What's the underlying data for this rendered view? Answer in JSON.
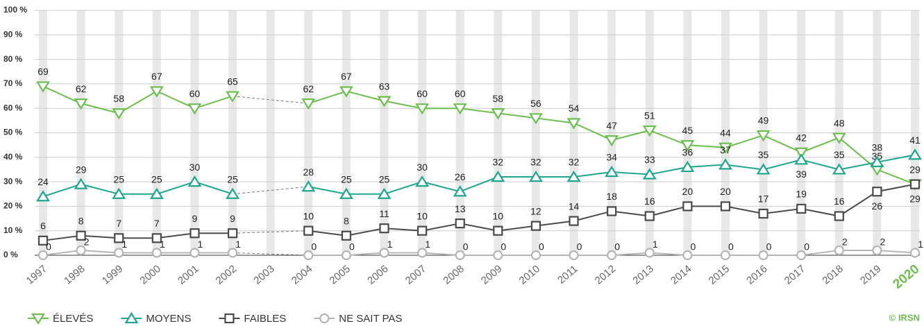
{
  "chart_data": {
    "type": "line",
    "categories": [
      "1997",
      "1998",
      "1999",
      "2000",
      "2001",
      "2002",
      "2003",
      "2004",
      "2005",
      "2006",
      "2007",
      "2008",
      "2009",
      "2010",
      "2011",
      "2012",
      "2013",
      "2014",
      "2015",
      "2016",
      "2017",
      "2018",
      "2019",
      "2020"
    ],
    "series": [
      {
        "name": "ÉLEVÉS",
        "color": "#6cbf4e",
        "marker": "triangle-down",
        "values": [
          69,
          62,
          58,
          67,
          60,
          65,
          null,
          62,
          67,
          63,
          60,
          60,
          58,
          56,
          54,
          47,
          51,
          45,
          44,
          49,
          42,
          48,
          35,
          29
        ]
      },
      {
        "name": "MOYENS",
        "color": "#1ea68e",
        "marker": "triangle-up",
        "values": [
          24,
          29,
          25,
          25,
          30,
          25,
          null,
          28,
          25,
          25,
          30,
          26,
          32,
          32,
          32,
          34,
          33,
          36,
          37,
          35,
          39,
          35,
          38,
          41
        ]
      },
      {
        "name": "FAIBLES",
        "color": "#4a4a4a",
        "marker": "square",
        "values": [
          6,
          8,
          7,
          7,
          9,
          9,
          null,
          10,
          8,
          11,
          10,
          13,
          10,
          12,
          14,
          18,
          16,
          20,
          20,
          17,
          19,
          16,
          26,
          29
        ]
      },
      {
        "name": "NE SAIT PAS",
        "color": "#b5b5b5",
        "marker": "circle",
        "values": [
          0,
          2,
          1,
          1,
          1,
          1,
          null,
          0,
          0,
          1,
          1,
          0,
          0,
          0,
          0,
          0,
          1,
          0,
          0,
          0,
          0,
          2,
          2,
          1
        ]
      }
    ],
    "ylim": [
      0,
      100
    ],
    "yticks": [
      {
        "value": 0,
        "label": "0 %"
      },
      {
        "value": 10,
        "label": "10 %"
      },
      {
        "value": 20,
        "label": "20 %"
      },
      {
        "value": 30,
        "label": "30 %"
      },
      {
        "value": 40,
        "label": "40 %"
      },
      {
        "value": 50,
        "label": "50 %"
      },
      {
        "value": 60,
        "label": "60 %"
      },
      {
        "value": 70,
        "label": "70 %"
      },
      {
        "value": 80,
        "label": "80 %"
      },
      {
        "value": 90,
        "label": "90 %"
      },
      {
        "value": 100,
        "label": "100 %"
      }
    ],
    "grid": true,
    "legend": "bottom-left",
    "source": "© IRSN"
  }
}
